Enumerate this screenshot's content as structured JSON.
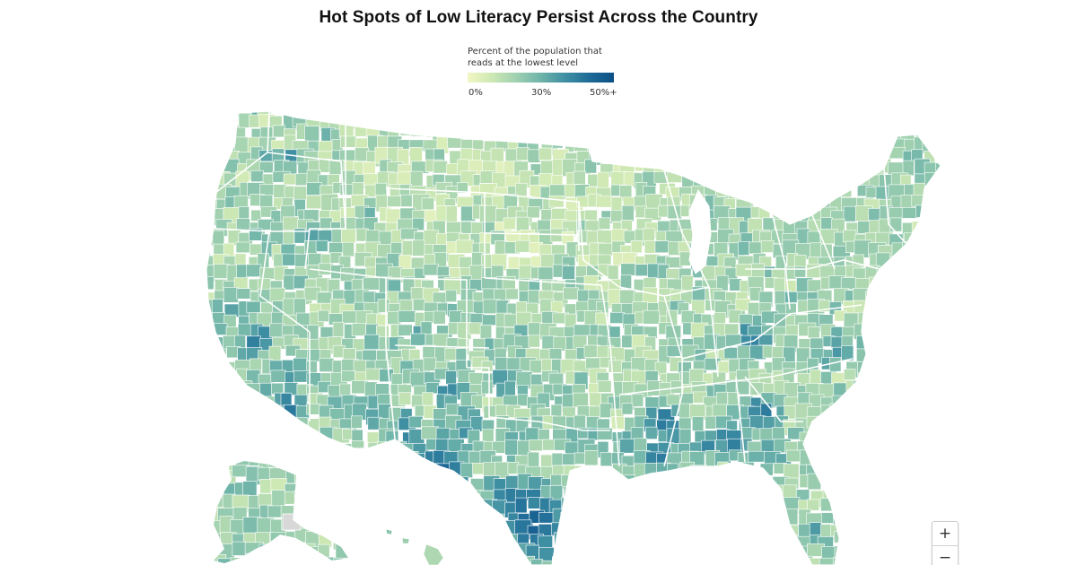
{
  "title": "Hot Spots of Low Literacy Persist Across the Country",
  "legend": {
    "label": "Percent of the population that reads at the lowest level",
    "label_line1": "Percent of the population that",
    "label_line2": "reads at the lowest level",
    "ticks": [
      "0%",
      "30%",
      "50%+"
    ],
    "scale_min": 0,
    "scale_max": 50,
    "colors": [
      "#f2f7c4",
      "#cde8b4",
      "#9fd0b0",
      "#6fb4aa",
      "#3f8fa3",
      "#1e6b98",
      "#0c4f86"
    ]
  },
  "map": {
    "region": "United States (counties)",
    "no_data_color": "#d8d8d8",
    "border_color": "#ffffff"
  },
  "controls": {
    "zoom_in": "+",
    "zoom_out": "−"
  }
}
